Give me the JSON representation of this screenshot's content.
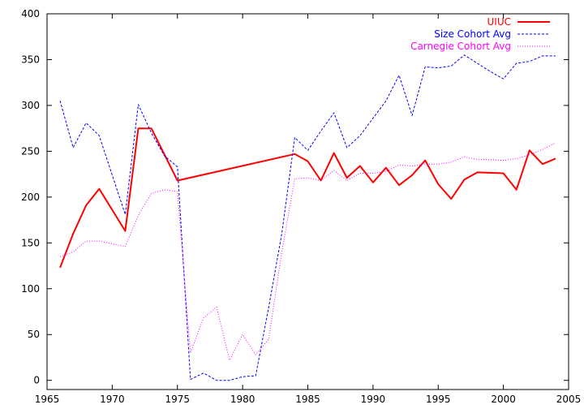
{
  "chart_data": {
    "type": "line",
    "title": "",
    "xlabel": "",
    "ylabel": "",
    "xlim": [
      1965,
      2005
    ],
    "ylim": [
      -10,
      400
    ],
    "x_ticks": [
      1965,
      1970,
      1975,
      1980,
      1985,
      1990,
      1995,
      2000,
      2005
    ],
    "y_ticks": [
      0,
      50,
      100,
      150,
      200,
      250,
      300,
      350,
      400
    ],
    "grid": false,
    "legend_position": "top-right",
    "series": [
      {
        "name": "UIUC",
        "color": "#ff0000",
        "style": "solid",
        "points": [
          [
            1966,
            123
          ],
          [
            1967,
            160
          ],
          [
            1968,
            191
          ],
          [
            1969,
            209
          ],
          [
            1971,
            163
          ],
          [
            1972,
            275
          ],
          [
            1973,
            275
          ],
          [
            1975,
            218
          ],
          [
            1984,
            247
          ],
          [
            1985,
            239
          ],
          [
            1986,
            218
          ],
          [
            1987,
            248
          ],
          [
            1988,
            221
          ],
          [
            1989,
            234
          ],
          [
            1990,
            216
          ],
          [
            1991,
            232
          ],
          [
            1992,
            213
          ],
          [
            1993,
            224
          ],
          [
            1994,
            240
          ],
          [
            1995,
            214
          ],
          [
            1996,
            198
          ],
          [
            1997,
            219
          ],
          [
            1998,
            227
          ],
          [
            2000,
            226
          ],
          [
            2001,
            208
          ],
          [
            2002,
            251
          ],
          [
            2003,
            236
          ],
          [
            2004,
            242
          ]
        ]
      },
      {
        "name": "Size Cohort Avg",
        "color": "#0000ff",
        "style": "dashed",
        "points": [
          [
            1966,
            305
          ],
          [
            1967,
            254
          ],
          [
            1968,
            281
          ],
          [
            1969,
            267
          ],
          [
            1971,
            181
          ],
          [
            1972,
            301
          ],
          [
            1973,
            270
          ],
          [
            1974,
            245
          ],
          [
            1975,
            233
          ],
          [
            1976,
            1
          ],
          [
            1977,
            8
          ],
          [
            1978,
            0
          ],
          [
            1979,
            0
          ],
          [
            1980,
            4
          ],
          [
            1981,
            5
          ],
          [
            1982,
            80
          ],
          [
            1983,
            160
          ],
          [
            1984,
            265
          ],
          [
            1985,
            251
          ],
          [
            1986,
            272
          ],
          [
            1987,
            292
          ],
          [
            1988,
            254
          ],
          [
            1989,
            267
          ],
          [
            1990,
            286
          ],
          [
            1991,
            305
          ],
          [
            1992,
            333
          ],
          [
            1993,
            289
          ],
          [
            1994,
            342
          ],
          [
            1995,
            341
          ],
          [
            1996,
            343
          ],
          [
            1997,
            355
          ],
          [
            1998,
            346
          ],
          [
            1999,
            337
          ],
          [
            2000,
            329
          ],
          [
            2001,
            346
          ],
          [
            2002,
            348
          ],
          [
            2003,
            354
          ],
          [
            2004,
            354
          ]
        ]
      },
      {
        "name": "Carnegie Cohort Avg",
        "color": "#ff00ff",
        "style": "dotted",
        "points": [
          [
            1966,
            135
          ],
          [
            1967,
            140
          ],
          [
            1968,
            152
          ],
          [
            1969,
            152
          ],
          [
            1971,
            146
          ],
          [
            1972,
            180
          ],
          [
            1973,
            204
          ],
          [
            1974,
            208
          ],
          [
            1975,
            206
          ],
          [
            1976,
            30
          ],
          [
            1977,
            68
          ],
          [
            1978,
            80
          ],
          [
            1979,
            22
          ],
          [
            1980,
            50
          ],
          [
            1981,
            28
          ],
          [
            1982,
            45
          ],
          [
            1983,
            140
          ],
          [
            1984,
            220
          ],
          [
            1985,
            221
          ],
          [
            1986,
            218
          ],
          [
            1987,
            229
          ],
          [
            1988,
            218
          ],
          [
            1989,
            226
          ],
          [
            1990,
            226
          ],
          [
            1991,
            228
          ],
          [
            1992,
            235
          ],
          [
            1993,
            234
          ],
          [
            1994,
            236
          ],
          [
            1995,
            236
          ],
          [
            1996,
            238
          ],
          [
            1997,
            244
          ],
          [
            1998,
            241
          ],
          [
            1999,
            241
          ],
          [
            2000,
            240
          ],
          [
            2001,
            242
          ],
          [
            2002,
            246
          ],
          [
            2003,
            252
          ],
          [
            2004,
            259
          ]
        ]
      }
    ]
  }
}
